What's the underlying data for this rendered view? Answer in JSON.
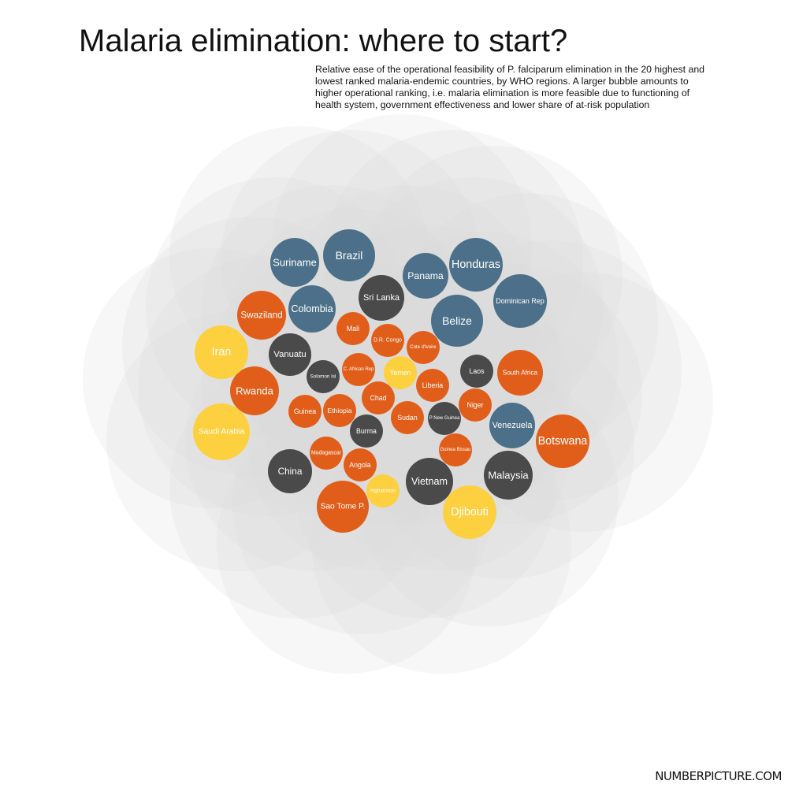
{
  "chart_data": {
    "type": "bubble",
    "title": "Malaria elimination: where to start?",
    "subtitle": "Relative ease of the operational feasibility of P. falciparum elimination in the 20 highest and lowest ranked malaria-endemic countries, by WHO regions. A larger bubble amounts to higher operational ranking, i.e. malaria elimination is more feasible due to functioning of health system, government effectiveness and lower share of at-risk population",
    "colors": {
      "americas": "#4c7089",
      "africa": "#e15e1a",
      "eastern_mediterranean": "#fdd03f",
      "asia_pacific": "#4a4a4a",
      "background_circles": "#d9d9d9",
      "label": "#ffffff"
    },
    "series": [
      {
        "country": "Brazil",
        "region": "americas",
        "ranking_size": 33
      },
      {
        "country": "Suriname",
        "region": "americas",
        "ranking_size": 31
      },
      {
        "country": "Panama",
        "region": "americas",
        "ranking_size": 29
      },
      {
        "country": "Honduras",
        "region": "americas",
        "ranking_size": 34
      },
      {
        "country": "Dominican Rep",
        "region": "americas",
        "ranking_size": 34
      },
      {
        "country": "Colombia",
        "region": "americas",
        "ranking_size": 30
      },
      {
        "country": "Belize",
        "region": "americas",
        "ranking_size": 33
      },
      {
        "country": "Venezuela",
        "region": "americas",
        "ranking_size": 29
      },
      {
        "country": "Sri Lanka",
        "region": "asia_pacific",
        "ranking_size": 29
      },
      {
        "country": "Vanuatu",
        "region": "asia_pacific",
        "ranking_size": 27
      },
      {
        "country": "Solomon Isl",
        "region": "asia_pacific",
        "ranking_size": 21
      },
      {
        "country": "Laos",
        "region": "asia_pacific",
        "ranking_size": 21
      },
      {
        "country": "Burma",
        "region": "asia_pacific",
        "ranking_size": 21
      },
      {
        "country": "P New Guinea",
        "region": "asia_pacific",
        "ranking_size": 21
      },
      {
        "country": "China",
        "region": "asia_pacific",
        "ranking_size": 28
      },
      {
        "country": "Vietnam",
        "region": "asia_pacific",
        "ranking_size": 30
      },
      {
        "country": "Malaysia",
        "region": "asia_pacific",
        "ranking_size": 31
      },
      {
        "country": "Swaziland",
        "region": "africa",
        "ranking_size": 31
      },
      {
        "country": "Rwanda",
        "region": "africa",
        "ranking_size": 31
      },
      {
        "country": "Mali",
        "region": "africa",
        "ranking_size": 21
      },
      {
        "country": "D.R. Congo",
        "region": "africa",
        "ranking_size": 21
      },
      {
        "country": "Cote d'Ivoire",
        "region": "africa",
        "ranking_size": 21
      },
      {
        "country": "C. African Rep",
        "region": "africa",
        "ranking_size": 21
      },
      {
        "country": "Liberia",
        "region": "africa",
        "ranking_size": 21
      },
      {
        "country": "Chad",
        "region": "africa",
        "ranking_size": 21
      },
      {
        "country": "Guinea",
        "region": "africa",
        "ranking_size": 21
      },
      {
        "country": "Ethiopia",
        "region": "africa",
        "ranking_size": 21
      },
      {
        "country": "Sudan",
        "region": "africa",
        "ranking_size": 21
      },
      {
        "country": "Niger",
        "region": "africa",
        "ranking_size": 21
      },
      {
        "country": "South Africa",
        "region": "africa",
        "ranking_size": 29
      },
      {
        "country": "Madagascar",
        "region": "africa",
        "ranking_size": 21
      },
      {
        "country": "Guinea Bissau",
        "region": "africa",
        "ranking_size": 21
      },
      {
        "country": "Angola",
        "region": "africa",
        "ranking_size": 21
      },
      {
        "country": "Botswana",
        "region": "africa",
        "ranking_size": 34
      },
      {
        "country": "Sao Tome P.",
        "region": "africa",
        "ranking_size": 33
      },
      {
        "country": "Iran",
        "region": "eastern_mediterranean",
        "ranking_size": 34
      },
      {
        "country": "Saudi Arabia",
        "region": "eastern_mediterranean",
        "ranking_size": 36
      },
      {
        "country": "Yemen",
        "region": "eastern_mediterranean",
        "ranking_size": 21
      },
      {
        "country": "Afghanistan",
        "region": "eastern_mediterranean",
        "ranking_size": 21
      },
      {
        "country": "Djibouti",
        "region": "eastern_mediterranean",
        "ranking_size": 34
      }
    ]
  },
  "footer": {
    "brand": "NUMBERPICTURE.COM"
  }
}
